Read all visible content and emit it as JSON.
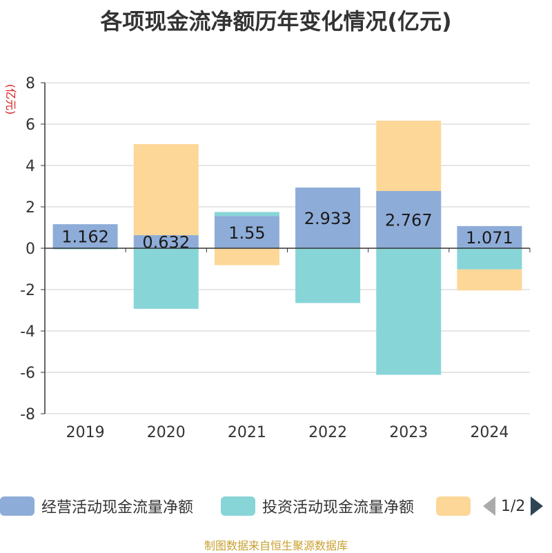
{
  "chart_data": {
    "type": "bar",
    "stacked": true,
    "title": "各项现金流净额历年变化情况(亿元)",
    "ylabel": "(亿元)",
    "xlabel": "",
    "categories": [
      "2019",
      "2020",
      "2021",
      "2022",
      "2023",
      "2024"
    ],
    "ylim": [
      -8,
      8
    ],
    "yticks": [
      8,
      6,
      4,
      2,
      0,
      -2,
      -4,
      -6,
      -8
    ],
    "grid": true,
    "series": [
      {
        "name": "经营活动现金流量净额",
        "color": "#8eacd8",
        "values": [
          1.162,
          0.632,
          1.55,
          2.933,
          2.767,
          1.071
        ],
        "labels": [
          "1.162",
          "0.632",
          "1.55",
          "2.933",
          "2.767",
          "1.071"
        ]
      },
      {
        "name": "投资活动现金流量净额",
        "color": "#88d5d8",
        "values": [
          -0.05,
          -2.93,
          0.2,
          -2.65,
          -6.12,
          -1.02
        ]
      },
      {
        "values": [
          0,
          4.4,
          -0.82,
          0,
          3.4,
          -1.02
        ],
        "color": "#fdd797"
      }
    ],
    "legend_position": "bottom"
  },
  "legend": {
    "items": [
      {
        "label": "经营活动现金流量净额",
        "color": "#8eacd8"
      },
      {
        "label": "投资活动现金流量净额",
        "color": "#88d5d8"
      },
      {
        "label": "",
        "color": "#fdd797"
      }
    ],
    "page": "1/2"
  },
  "source": "制图数据来自恒生聚源数据库"
}
